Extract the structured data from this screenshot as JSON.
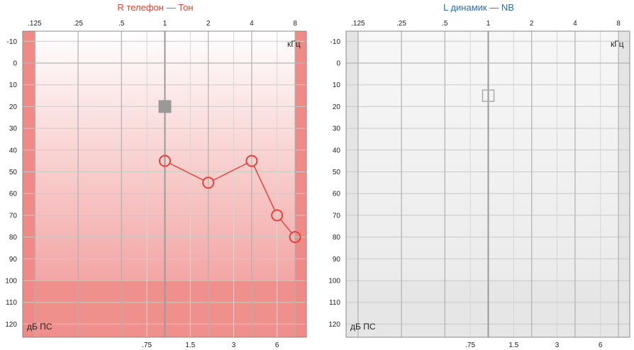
{
  "panels": [
    {
      "title": "R телефон — Тон",
      "title_color": "#e0402c",
      "freq_unit": "кГц",
      "db_unit": "дБ ПС",
      "theme": "red",
      "accent": "#e8413a",
      "masked_symbols": [
        {
          "freq_khz": 1,
          "db": 20,
          "symbol": "filled-square",
          "color": "#999999"
        }
      ],
      "series": [
        {
          "symbol": "circle",
          "color": "#e8413a",
          "points": [
            {
              "freq_khz": 1,
              "db": 45
            },
            {
              "freq_khz": 2,
              "db": 55
            },
            {
              "freq_khz": 4,
              "db": 45
            },
            {
              "freq_khz": 6,
              "db": 70
            },
            {
              "freq_khz": 8,
              "db": 80
            }
          ]
        }
      ]
    },
    {
      "title": "L динамик — NB",
      "title_color": "#2a6fb0",
      "freq_unit": "кГц",
      "db_unit": "дБ ПС",
      "theme": "gray",
      "accent": "#bbbbbb",
      "masked_symbols": [
        {
          "freq_khz": 1,
          "db": 15,
          "symbol": "open-square",
          "color": "#aaaaaa"
        }
      ],
      "series": []
    }
  ],
  "chart_data": {
    "type": "scatter",
    "top_freq_ticks": [
      ".125",
      ".25",
      ".5",
      "1",
      "2",
      "4",
      "8"
    ],
    "top_freq_values": [
      0.125,
      0.25,
      0.5,
      1,
      2,
      4,
      8
    ],
    "bottom_freq_ticks": [
      ".75",
      "1.5",
      "3",
      "6"
    ],
    "bottom_freq_values": [
      0.75,
      1.5,
      3,
      6
    ],
    "db_ticks": [
      "-10",
      "0",
      "10",
      "20",
      "30",
      "40",
      "50",
      "60",
      "70",
      "80",
      "90",
      "100",
      "110",
      "120"
    ],
    "db_values": [
      -10,
      0,
      10,
      20,
      30,
      40,
      50,
      60,
      70,
      80,
      90,
      100,
      110,
      120
    ],
    "ylim": [
      -15,
      125
    ],
    "xlim_khz": [
      0.09,
      10
    ]
  }
}
